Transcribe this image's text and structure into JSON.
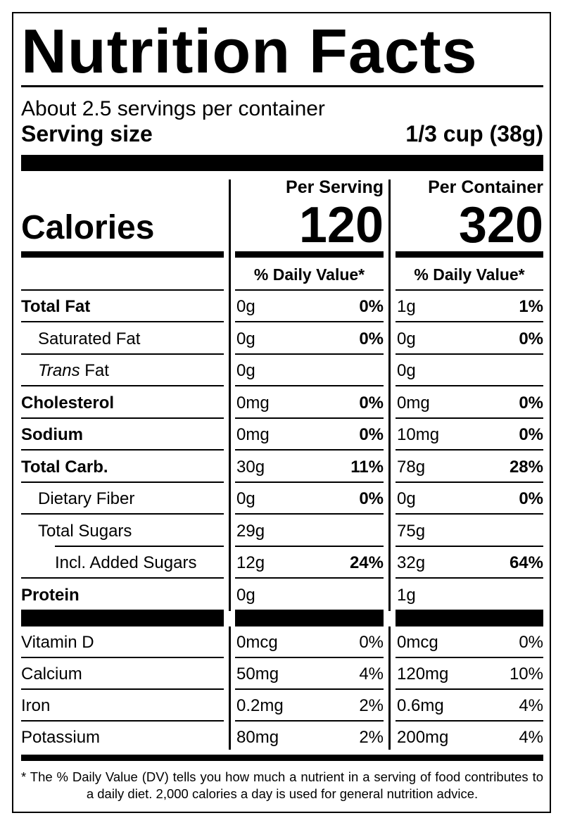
{
  "title": "Nutrition Facts",
  "servings": "About 2.5 servings per container",
  "serving_size_label": "Serving size",
  "serving_size": "1/3 cup (38g)",
  "calories_label": "Calories",
  "columns": [
    {
      "header": "Per Serving",
      "calories": "120",
      "dv_header": "% Daily Value*"
    },
    {
      "header": "Per Container",
      "calories": "320",
      "dv_header": "% Daily Value*"
    }
  ],
  "nutrients": [
    {
      "name": "Total Fat",
      "bold": true,
      "indent": 0,
      "cells": [
        {
          "amount": "0g",
          "dv": "0%"
        },
        {
          "amount": "1g",
          "dv": "1%"
        }
      ]
    },
    {
      "name": "Saturated Fat",
      "bold": false,
      "indent": 1,
      "cells": [
        {
          "amount": "0g",
          "dv": "0%"
        },
        {
          "amount": "0g",
          "dv": "0%"
        }
      ]
    },
    {
      "italic_prefix": "Trans",
      "name": "Fat",
      "bold": false,
      "indent": 1,
      "cells": [
        {
          "amount": "0g"
        },
        {
          "amount": "0g"
        }
      ]
    },
    {
      "name": "Cholesterol",
      "bold": true,
      "indent": 0,
      "cells": [
        {
          "amount": "0mg",
          "dv": "0%"
        },
        {
          "amount": "0mg",
          "dv": "0%"
        }
      ]
    },
    {
      "name": "Sodium",
      "bold": true,
      "indent": 0,
      "cells": [
        {
          "amount": "0mg",
          "dv": "0%"
        },
        {
          "amount": "10mg",
          "dv": "0%"
        }
      ]
    },
    {
      "name": "Total Carb.",
      "bold": true,
      "indent": 0,
      "cells": [
        {
          "amount": "30g",
          "dv": "11%"
        },
        {
          "amount": "78g",
          "dv": "28%"
        }
      ]
    },
    {
      "name": "Dietary Fiber",
      "bold": false,
      "indent": 1,
      "cells": [
        {
          "amount": "0g",
          "dv": "0%"
        },
        {
          "amount": "0g",
          "dv": "0%"
        }
      ]
    },
    {
      "name": "Total Sugars",
      "bold": false,
      "indent": 1,
      "cells": [
        {
          "amount": "29g"
        },
        {
          "amount": "75g"
        }
      ]
    },
    {
      "name": "Incl. Added Sugars",
      "bold": false,
      "indent": 2,
      "cells": [
        {
          "amount": "12g",
          "dv": "24%"
        },
        {
          "amount": "32g",
          "dv": "64%"
        }
      ]
    },
    {
      "name": "Protein",
      "bold": true,
      "indent": 0,
      "cells": [
        {
          "amount": "0g"
        },
        {
          "amount": "1g"
        }
      ]
    }
  ],
  "vitamins": [
    {
      "name": "Vitamin D",
      "cells": [
        {
          "amount": "0mcg",
          "dv": "0%"
        },
        {
          "amount": "0mcg",
          "dv": "0%"
        }
      ]
    },
    {
      "name": "Calcium",
      "cells": [
        {
          "amount": "50mg",
          "dv": "4%"
        },
        {
          "amount": "120mg",
          "dv": "10%"
        }
      ]
    },
    {
      "name": "Iron",
      "cells": [
        {
          "amount": "0.2mg",
          "dv": "2%"
        },
        {
          "amount": "0.6mg",
          "dv": "4%"
        }
      ]
    },
    {
      "name": "Potassium",
      "cells": [
        {
          "amount": "80mg",
          "dv": "2%"
        },
        {
          "amount": "200mg",
          "dv": "4%"
        }
      ]
    }
  ],
  "footnote": "* The % Daily Value (DV) tells you how much a nutrient in a serving of food contributes to a daily diet. 2,000 calories a day is used for general nutrition advice."
}
